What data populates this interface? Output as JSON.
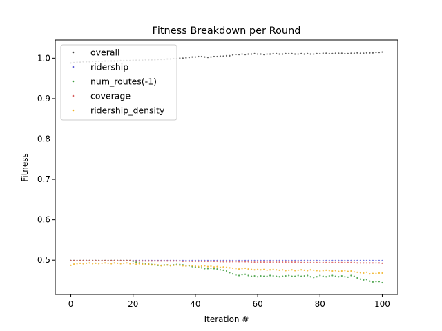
{
  "chart_data": {
    "type": "scatter",
    "title": "Fitness Breakdown per Round",
    "xlabel": "Iteration #",
    "ylabel": "Fitness",
    "xlim": [
      -5,
      105
    ],
    "ylim": [
      0.415,
      1.045
    ],
    "xticks": [
      0,
      20,
      40,
      60,
      80,
      100
    ],
    "yticks": [
      0.5,
      0.6,
      0.7,
      0.8,
      0.9,
      1.0
    ],
    "ytick_labels": [
      "0.5",
      "0.6",
      "0.7",
      "0.8",
      "0.9",
      "1.0"
    ],
    "grid": false,
    "legend_position": "upper-left",
    "series": [
      {
        "name": "overall",
        "color": "#444444",
        "values": [
          0.988,
          0.989,
          0.99,
          0.99,
          0.991,
          0.991,
          0.991,
          0.992,
          0.992,
          0.992,
          0.992,
          0.993,
          0.993,
          0.993,
          0.993,
          0.993,
          0.994,
          0.994,
          0.994,
          0.994,
          0.995,
          0.995,
          0.995,
          0.995,
          0.996,
          0.996,
          0.996,
          0.996,
          0.997,
          0.997,
          0.997,
          0.998,
          0.998,
          0.999,
          0.999,
          1.0,
          1.0,
          1.001,
          1.002,
          1.003,
          1.003,
          1.004,
          1.004,
          1.003,
          1.002,
          1.003,
          1.004,
          1.004,
          1.005,
          1.005,
          1.006,
          1.006,
          1.008,
          1.009,
          1.009,
          1.01,
          1.009,
          1.01,
          1.01,
          1.011,
          1.01,
          1.01,
          1.009,
          1.01,
          1.01,
          1.011,
          1.011,
          1.01,
          1.01,
          1.011,
          1.011,
          1.011,
          1.01,
          1.01,
          1.011,
          1.01,
          1.011,
          1.01,
          1.01,
          1.011,
          1.011,
          1.012,
          1.012,
          1.011,
          1.011,
          1.012,
          1.012,
          1.012,
          1.011,
          1.011,
          1.012,
          1.012,
          1.013,
          1.012,
          1.012,
          1.013,
          1.013,
          1.013,
          1.014,
          1.014,
          1.015
        ]
      },
      {
        "name": "ridership",
        "color": "#5a5ad6",
        "values": [
          0.499,
          0.499,
          0.499,
          0.499,
          0.499,
          0.499,
          0.499,
          0.499,
          0.499,
          0.499,
          0.499,
          0.499,
          0.499,
          0.499,
          0.499,
          0.499,
          0.499,
          0.499,
          0.499,
          0.499,
          0.499,
          0.499,
          0.499,
          0.499,
          0.499,
          0.499,
          0.499,
          0.499,
          0.499,
          0.499,
          0.499,
          0.499,
          0.499,
          0.499,
          0.499,
          0.499,
          0.499,
          0.499,
          0.499,
          0.499,
          0.499,
          0.499,
          0.499,
          0.499,
          0.499,
          0.499,
          0.499,
          0.499,
          0.499,
          0.499,
          0.499,
          0.499,
          0.499,
          0.499,
          0.499,
          0.499,
          0.499,
          0.499,
          0.499,
          0.499,
          0.499,
          0.499,
          0.499,
          0.499,
          0.499,
          0.499,
          0.499,
          0.499,
          0.499,
          0.499,
          0.499,
          0.499,
          0.499,
          0.499,
          0.499,
          0.499,
          0.499,
          0.499,
          0.499,
          0.499,
          0.499,
          0.499,
          0.499,
          0.499,
          0.499,
          0.499,
          0.499,
          0.499,
          0.499,
          0.499,
          0.499,
          0.499,
          0.499,
          0.499,
          0.499,
          0.499,
          0.499,
          0.499,
          0.499,
          0.499,
          0.499
        ]
      },
      {
        "name": "num_routes(-1)",
        "color": "#3a9a3a",
        "values": [
          0.499,
          0.499,
          0.499,
          0.499,
          0.499,
          0.499,
          0.499,
          0.499,
          0.499,
          0.499,
          0.499,
          0.499,
          0.499,
          0.499,
          0.499,
          0.499,
          0.499,
          0.499,
          0.499,
          0.499,
          0.497,
          0.495,
          0.493,
          0.492,
          0.491,
          0.49,
          0.489,
          0.488,
          0.487,
          0.487,
          0.488,
          0.488,
          0.487,
          0.488,
          0.489,
          0.489,
          0.488,
          0.487,
          0.486,
          0.484,
          0.483,
          0.482,
          0.481,
          0.479,
          0.479,
          0.48,
          0.479,
          0.478,
          0.476,
          0.475,
          0.473,
          0.469,
          0.466,
          0.463,
          0.462,
          0.464,
          0.465,
          0.462,
          0.46,
          0.461,
          0.459,
          0.461,
          0.46,
          0.46,
          0.462,
          0.461,
          0.46,
          0.459,
          0.46,
          0.461,
          0.462,
          0.46,
          0.46,
          0.462,
          0.46,
          0.461,
          0.462,
          0.459,
          0.457,
          0.459,
          0.462,
          0.46,
          0.459,
          0.461,
          0.462,
          0.46,
          0.459,
          0.461,
          0.459,
          0.458,
          0.462,
          0.46,
          0.456,
          0.453,
          0.451,
          0.452,
          0.448,
          0.446,
          0.447,
          0.447,
          0.444
        ]
      },
      {
        "name": "coverage",
        "color": "#d65a5a",
        "values": [
          0.499,
          0.499,
          0.499,
          0.499,
          0.499,
          0.499,
          0.499,
          0.499,
          0.499,
          0.499,
          0.499,
          0.499,
          0.499,
          0.499,
          0.499,
          0.499,
          0.499,
          0.499,
          0.499,
          0.499,
          0.498,
          0.498,
          0.498,
          0.498,
          0.498,
          0.498,
          0.498,
          0.498,
          0.498,
          0.498,
          0.498,
          0.498,
          0.498,
          0.498,
          0.498,
          0.498,
          0.497,
          0.497,
          0.497,
          0.497,
          0.497,
          0.497,
          0.497,
          0.497,
          0.497,
          0.497,
          0.497,
          0.497,
          0.496,
          0.496,
          0.496,
          0.496,
          0.496,
          0.496,
          0.496,
          0.496,
          0.496,
          0.496,
          0.495,
          0.495,
          0.495,
          0.495,
          0.495,
          0.495,
          0.495,
          0.495,
          0.495,
          0.495,
          0.495,
          0.495,
          0.495,
          0.495,
          0.495,
          0.495,
          0.494,
          0.494,
          0.494,
          0.494,
          0.494,
          0.494,
          0.494,
          0.494,
          0.494,
          0.494,
          0.494,
          0.494,
          0.494,
          0.494,
          0.494,
          0.494,
          0.494,
          0.494,
          0.493,
          0.493,
          0.493,
          0.493,
          0.493,
          0.493,
          0.493,
          0.493,
          0.492
        ]
      },
      {
        "name": "ridership_density",
        "color": "#f0b020",
        "values": [
          0.487,
          0.49,
          0.491,
          0.492,
          0.491,
          0.492,
          0.493,
          0.491,
          0.492,
          0.491,
          0.492,
          0.493,
          0.492,
          0.491,
          0.493,
          0.492,
          0.491,
          0.492,
          0.493,
          0.491,
          0.492,
          0.49,
          0.491,
          0.49,
          0.489,
          0.49,
          0.488,
          0.489,
          0.488,
          0.486,
          0.487,
          0.488,
          0.486,
          0.487,
          0.488,
          0.487,
          0.486,
          0.485,
          0.487,
          0.486,
          0.485,
          0.484,
          0.485,
          0.486,
          0.484,
          0.485,
          0.483,
          0.484,
          0.482,
          0.483,
          0.482,
          0.481,
          0.48,
          0.479,
          0.478,
          0.479,
          0.48,
          0.478,
          0.477,
          0.476,
          0.477,
          0.476,
          0.477,
          0.475,
          0.476,
          0.477,
          0.476,
          0.475,
          0.476,
          0.474,
          0.475,
          0.476,
          0.474,
          0.475,
          0.476,
          0.475,
          0.474,
          0.476,
          0.475,
          0.474,
          0.473,
          0.474,
          0.475,
          0.474,
          0.473,
          0.474,
          0.472,
          0.473,
          0.474,
          0.472,
          0.473,
          0.471,
          0.47,
          0.469,
          0.468,
          0.47,
          0.466,
          0.467,
          0.467,
          0.468,
          0.468
        ]
      }
    ]
  }
}
